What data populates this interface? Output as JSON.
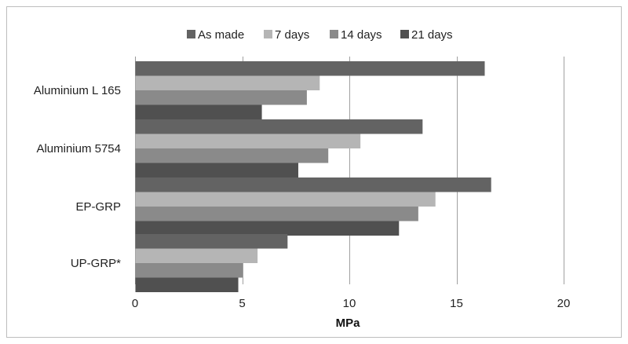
{
  "chart_data": {
    "type": "bar",
    "orientation": "horizontal",
    "categories": [
      "Aluminium L 165",
      "Aluminium 5754",
      "EP-GRP",
      "UP-GRP*"
    ],
    "series": [
      {
        "name": "As made",
        "values": [
          16.3,
          13.4,
          16.6,
          7.1
        ],
        "color": "#636363"
      },
      {
        "name": "7 days",
        "values": [
          8.6,
          10.5,
          14.0,
          5.7
        ],
        "color": "#b5b5b5"
      },
      {
        "name": "14 days",
        "values": [
          8.0,
          9.0,
          13.2,
          5.0
        ],
        "color": "#8a8a8a"
      },
      {
        "name": "21 days",
        "values": [
          5.9,
          7.6,
          12.3,
          4.8
        ],
        "color": "#505050"
      }
    ],
    "xlabel": "MPa",
    "xlim": [
      0,
      20
    ],
    "xticks": [
      0,
      5,
      10,
      15,
      20
    ],
    "grid": true,
    "legend_position": "top"
  }
}
